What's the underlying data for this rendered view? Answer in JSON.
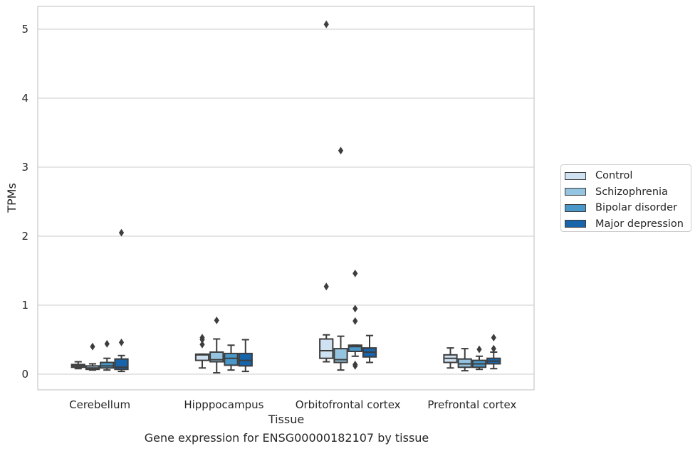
{
  "chart_data": {
    "type": "box",
    "xlabel": "Tissue",
    "ylabel": "TPMs",
    "ylim": [
      -0.22,
      5.33
    ],
    "yticks": [
      0,
      1,
      2,
      3,
      4,
      5
    ],
    "grid": "horizontal",
    "legend_position": "right",
    "categories": [
      "Cerebellum",
      "Hipppocampus",
      "Orbitofrontal cortex",
      "Prefrontal cortex"
    ],
    "series": [
      {
        "name": "Control",
        "color": "#d0e1f2",
        "boxes": [
          {
            "min": 0.08,
            "q1": 0.1,
            "median": 0.12,
            "q3": 0.14,
            "max": 0.18,
            "outliers": []
          },
          {
            "min": 0.09,
            "q1": 0.2,
            "median": 0.28,
            "q3": 0.29,
            "max": 0.29,
            "outliers": [
              0.43,
              0.5,
              0.53
            ]
          },
          {
            "min": 0.18,
            "q1": 0.23,
            "median": 0.34,
            "q3": 0.51,
            "max": 0.57,
            "outliers": [
              1.27,
              5.07
            ]
          },
          {
            "min": 0.09,
            "q1": 0.17,
            "median": 0.23,
            "q3": 0.28,
            "max": 0.38,
            "outliers": []
          }
        ]
      },
      {
        "name": "Schizophrenia",
        "color": "#94c4df",
        "boxes": [
          {
            "min": 0.06,
            "q1": 0.07,
            "median": 0.09,
            "q3": 0.12,
            "max": 0.15,
            "outliers": [
              0.4
            ]
          },
          {
            "min": 0.02,
            "q1": 0.18,
            "median": 0.21,
            "q3": 0.32,
            "max": 0.51,
            "outliers": [
              0.78
            ]
          },
          {
            "min": 0.06,
            "q1": 0.17,
            "median": 0.21,
            "q3": 0.37,
            "max": 0.55,
            "outliers": [
              3.24
            ]
          },
          {
            "min": 0.05,
            "q1": 0.1,
            "median": 0.15,
            "q3": 0.22,
            "max": 0.37,
            "outliers": []
          }
        ]
      },
      {
        "name": "Bipolar disorder",
        "color": "#4a98c9",
        "boxes": [
          {
            "min": 0.06,
            "q1": 0.09,
            "median": 0.12,
            "q3": 0.17,
            "max": 0.23,
            "outliers": [
              0.44
            ]
          },
          {
            "min": 0.06,
            "q1": 0.13,
            "median": 0.23,
            "q3": 0.3,
            "max": 0.42,
            "outliers": []
          },
          {
            "min": 0.26,
            "q1": 0.33,
            "median": 0.4,
            "q3": 0.42,
            "max": 0.42,
            "outliers": [
              0.12,
              0.14,
              0.77,
              0.95,
              1.46
            ]
          },
          {
            "min": 0.07,
            "q1": 0.1,
            "median": 0.15,
            "q3": 0.2,
            "max": 0.26,
            "outliers": [
              0.36
            ]
          }
        ]
      },
      {
        "name": "Major depression",
        "color": "#1764ab",
        "boxes": [
          {
            "min": 0.04,
            "q1": 0.07,
            "median": 0.1,
            "q3": 0.22,
            "max": 0.27,
            "outliers": [
              0.46,
              2.05
            ]
          },
          {
            "min": 0.04,
            "q1": 0.12,
            "median": 0.2,
            "q3": 0.3,
            "max": 0.5,
            "outliers": []
          },
          {
            "min": 0.17,
            "q1": 0.25,
            "median": 0.32,
            "q3": 0.38,
            "max": 0.56,
            "outliers": []
          },
          {
            "min": 0.08,
            "q1": 0.15,
            "median": 0.19,
            "q3": 0.23,
            "max": 0.32,
            "outliers": [
              0.37,
              0.53
            ]
          }
        ]
      }
    ]
  },
  "caption": "Gene expression for ENSG00000182107 by tissue"
}
